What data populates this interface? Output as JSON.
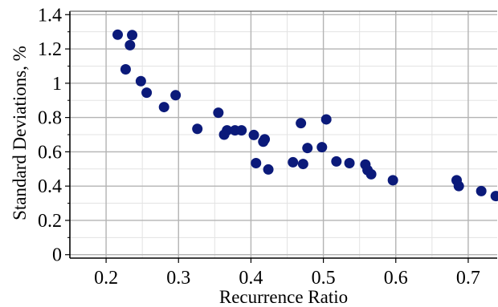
{
  "chart_data": {
    "type": "scatter",
    "xlabel": "Recurrence Ratio",
    "ylabel": "Standard Deviations, %",
    "xlim": [
      0.15,
      0.74
    ],
    "ylim": [
      -0.02,
      1.42
    ],
    "xticks": [
      0.2,
      0.3,
      0.4,
      0.5,
      0.6,
      0.7
    ],
    "xtick_labels": [
      "0.2",
      "0.3",
      "0.4",
      "0.5",
      "0.6",
      "0.7"
    ],
    "yticks": [
      0,
      0.2,
      0.4,
      0.6,
      0.8,
      1.0,
      1.2,
      1.4
    ],
    "ytick_labels": [
      "0",
      "0.2",
      "0.4",
      "0.6",
      "0.8",
      "1",
      "1.2",
      "1.4"
    ],
    "grid": true,
    "marker_color": "#0b1a7a",
    "points": [
      {
        "x": 0.216,
        "y": 1.283
      },
      {
        "x": 0.236,
        "y": 1.281
      },
      {
        "x": 0.233,
        "y": 1.222
      },
      {
        "x": 0.227,
        "y": 1.081
      },
      {
        "x": 0.248,
        "y": 1.012
      },
      {
        "x": 0.256,
        "y": 0.945
      },
      {
        "x": 0.296,
        "y": 0.93
      },
      {
        "x": 0.28,
        "y": 0.861
      },
      {
        "x": 0.355,
        "y": 0.828
      },
      {
        "x": 0.326,
        "y": 0.734
      },
      {
        "x": 0.367,
        "y": 0.725
      },
      {
        "x": 0.378,
        "y": 0.725
      },
      {
        "x": 0.387,
        "y": 0.725
      },
      {
        "x": 0.363,
        "y": 0.7
      },
      {
        "x": 0.404,
        "y": 0.698
      },
      {
        "x": 0.419,
        "y": 0.673
      },
      {
        "x": 0.417,
        "y": 0.659
      },
      {
        "x": 0.469,
        "y": 0.767
      },
      {
        "x": 0.504,
        "y": 0.789
      },
      {
        "x": 0.478,
        "y": 0.622
      },
      {
        "x": 0.498,
        "y": 0.627
      },
      {
        "x": 0.407,
        "y": 0.534
      },
      {
        "x": 0.424,
        "y": 0.497
      },
      {
        "x": 0.458,
        "y": 0.539
      },
      {
        "x": 0.472,
        "y": 0.529
      },
      {
        "x": 0.518,
        "y": 0.544
      },
      {
        "x": 0.536,
        "y": 0.534
      },
      {
        "x": 0.558,
        "y": 0.526
      },
      {
        "x": 0.561,
        "y": 0.493
      },
      {
        "x": 0.566,
        "y": 0.469
      },
      {
        "x": 0.596,
        "y": 0.434
      },
      {
        "x": 0.684,
        "y": 0.434
      },
      {
        "x": 0.687,
        "y": 0.4
      },
      {
        "x": 0.718,
        "y": 0.371
      },
      {
        "x": 0.738,
        "y": 0.342
      }
    ]
  }
}
